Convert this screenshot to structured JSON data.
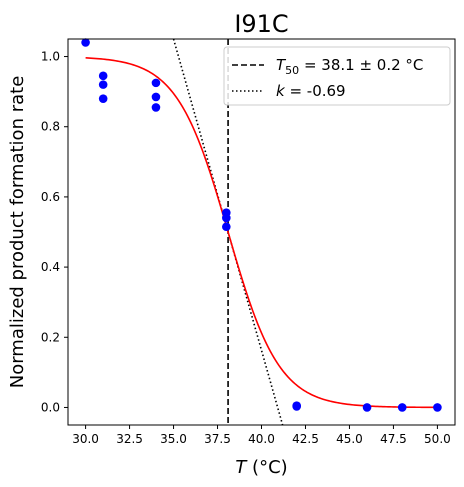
{
  "chart_data": {
    "type": "scatter",
    "title": "I91C",
    "xlabel": {
      "symbol": "T",
      "unit": " (°C)"
    },
    "ylabel": "Normalized product formation rate",
    "xlim": [
      29.0,
      51.0
    ],
    "ylim": [
      -0.05,
      1.05
    ],
    "x_ticks": [
      30.0,
      32.5,
      35.0,
      37.5,
      40.0,
      42.5,
      45.0,
      47.5,
      50.0
    ],
    "x_tick_labels": [
      "30.0",
      "32.5",
      "35.0",
      "37.5",
      "40.0",
      "42.5",
      "45.0",
      "47.5",
      "50.0"
    ],
    "y_ticks": [
      0.0,
      0.2,
      0.4,
      0.6,
      0.8,
      1.0
    ],
    "y_tick_labels": [
      "0.0",
      "0.2",
      "0.4",
      "0.6",
      "0.8",
      "1.0"
    ],
    "grid": false,
    "legend_position": "top-right",
    "colors": {
      "points": "#0000ff",
      "fit": "#ff0000",
      "t50_line": "#000000",
      "slope_line": "#000000"
    },
    "points": [
      {
        "x": 30.0,
        "y": 1.04
      },
      {
        "x": 31.0,
        "y": 0.945
      },
      {
        "x": 31.0,
        "y": 0.92
      },
      {
        "x": 31.0,
        "y": 0.88
      },
      {
        "x": 34.0,
        "y": 0.925
      },
      {
        "x": 34.0,
        "y": 0.885
      },
      {
        "x": 34.0,
        "y": 0.855
      },
      {
        "x": 38.0,
        "y": 0.555
      },
      {
        "x": 38.0,
        "y": 0.54
      },
      {
        "x": 38.0,
        "y": 0.515
      },
      {
        "x": 42.0,
        "y": 0.005
      },
      {
        "x": 42.0,
        "y": 0.003
      },
      {
        "x": 46.0,
        "y": 0.0
      },
      {
        "x": 48.0,
        "y": 0.0
      },
      {
        "x": 50.0,
        "y": 0.0
      }
    ],
    "fit_curve": {
      "x_range": [
        30.0,
        50.0
      ],
      "T50": 38.1,
      "k": -0.69,
      "top": 1.0
    },
    "tangent_line": {
      "x1": 35.0,
      "y1": 1.05,
      "x2": 41.2,
      "y2": -0.05
    },
    "legend": [
      {
        "style": "dashed",
        "label_symbol": "T",
        "label_subscript": "50",
        "label_rest": " = 38.1 ± 0.2 °C"
      },
      {
        "style": "dotted",
        "label_symbol": "k",
        "label_subscript": "",
        "label_rest": " = -0.69"
      }
    ]
  }
}
